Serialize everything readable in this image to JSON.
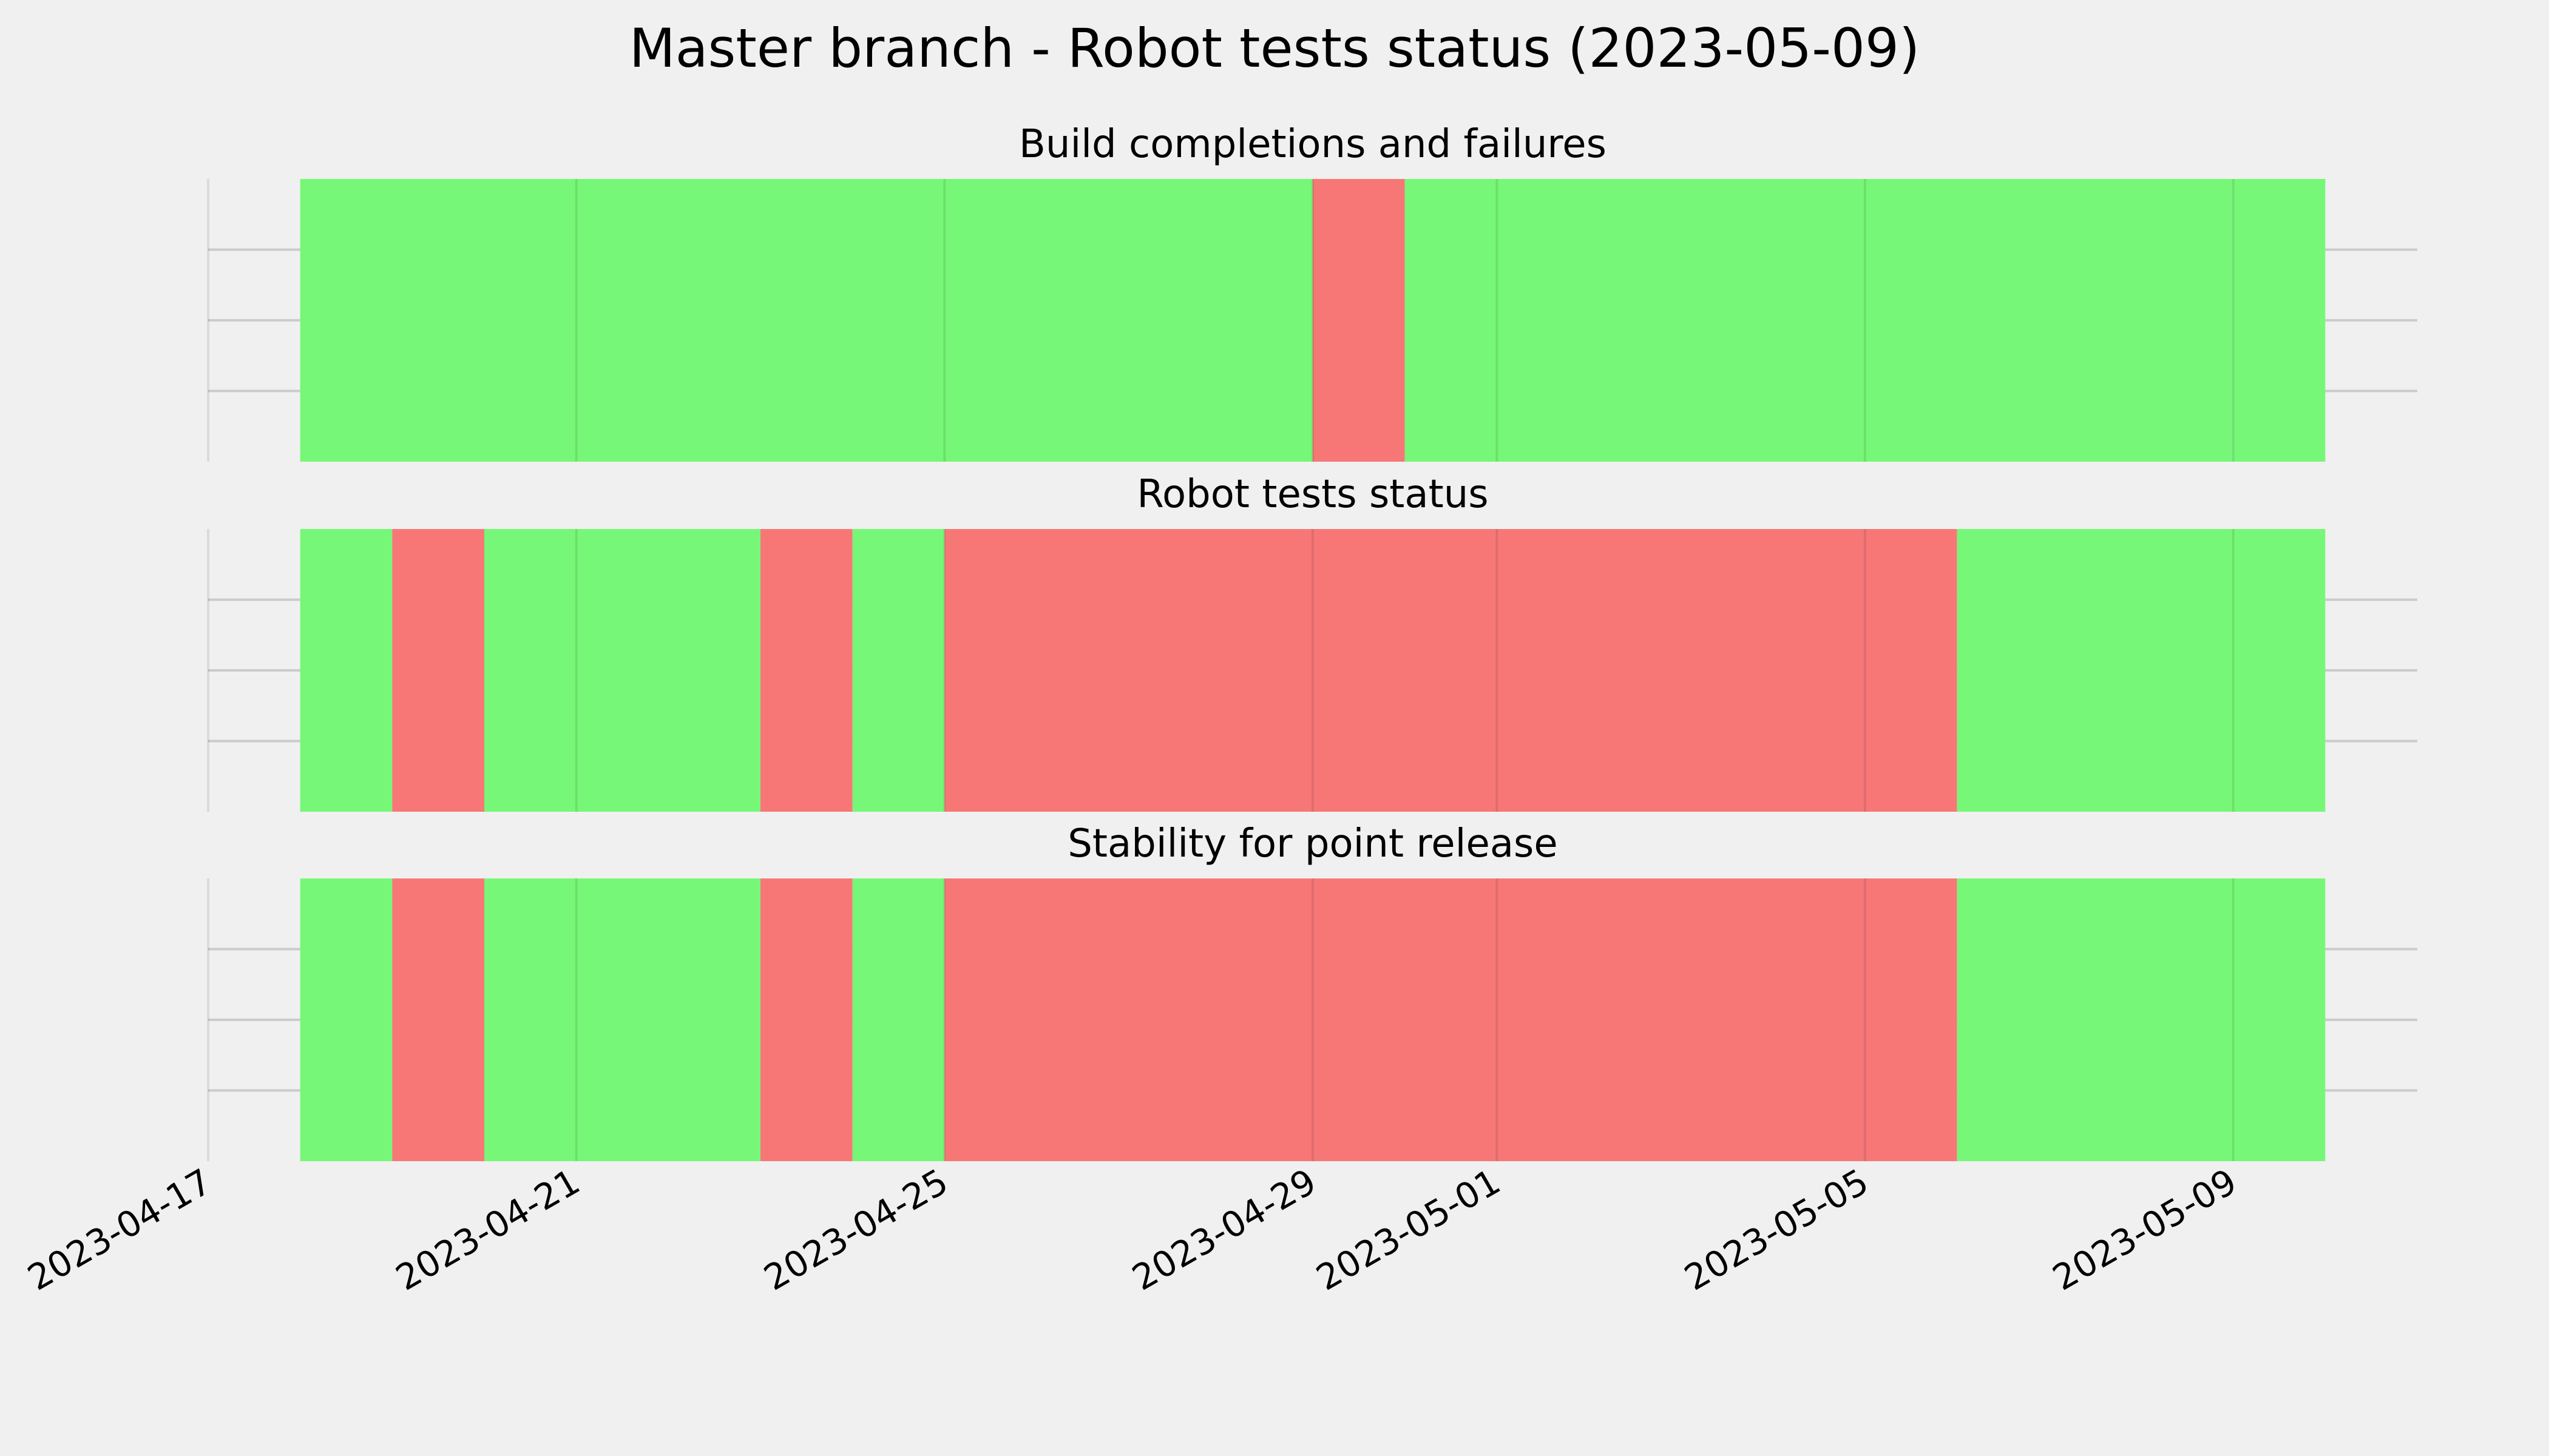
{
  "title": "Master branch - Robot tests status (2023-05-09)",
  "colors": {
    "pass": "#77f777",
    "fail": "#f77777",
    "background": "#f0f0f0"
  },
  "chart_data": {
    "type": "timeline",
    "x_type": "date",
    "xlim": [
      "2023-04-17",
      "2023-05-11"
    ],
    "x_ticks": [
      "2023-04-17",
      "2023-04-21",
      "2023-04-25",
      "2023-04-29",
      "2023-05-01",
      "2023-05-05",
      "2023-05-09"
    ],
    "grid": true,
    "panels": [
      {
        "title": "Build completions and failures",
        "segments": [
          {
            "start": "2023-04-18",
            "end": "2023-04-29",
            "status": "pass"
          },
          {
            "start": "2023-04-29",
            "end": "2023-04-30",
            "status": "fail"
          },
          {
            "start": "2023-04-30",
            "end": "2023-05-09",
            "status": "pass"
          },
          {
            "start": "2023-05-09",
            "end": "2023-05-10",
            "status": "pass"
          }
        ]
      },
      {
        "title": "Robot tests status",
        "segments": [
          {
            "start": "2023-04-18",
            "end": "2023-04-19",
            "status": "pass"
          },
          {
            "start": "2023-04-19",
            "end": "2023-04-20",
            "status": "fail"
          },
          {
            "start": "2023-04-20",
            "end": "2023-04-23",
            "status": "pass"
          },
          {
            "start": "2023-04-23",
            "end": "2023-04-24",
            "status": "fail"
          },
          {
            "start": "2023-04-24",
            "end": "2023-04-25",
            "status": "pass"
          },
          {
            "start": "2023-04-25",
            "end": "2023-05-06",
            "status": "fail"
          },
          {
            "start": "2023-05-06",
            "end": "2023-05-10",
            "status": "pass"
          }
        ]
      },
      {
        "title": "Stability for point release",
        "segments": [
          {
            "start": "2023-04-18",
            "end": "2023-04-19",
            "status": "pass"
          },
          {
            "start": "2023-04-19",
            "end": "2023-04-20",
            "status": "fail"
          },
          {
            "start": "2023-04-20",
            "end": "2023-04-23",
            "status": "pass"
          },
          {
            "start": "2023-04-23",
            "end": "2023-04-24",
            "status": "fail"
          },
          {
            "start": "2023-04-24",
            "end": "2023-04-25",
            "status": "pass"
          },
          {
            "start": "2023-04-25",
            "end": "2023-05-06",
            "status": "fail"
          },
          {
            "start": "2023-05-06",
            "end": "2023-05-10",
            "status": "pass"
          }
        ]
      }
    ]
  }
}
